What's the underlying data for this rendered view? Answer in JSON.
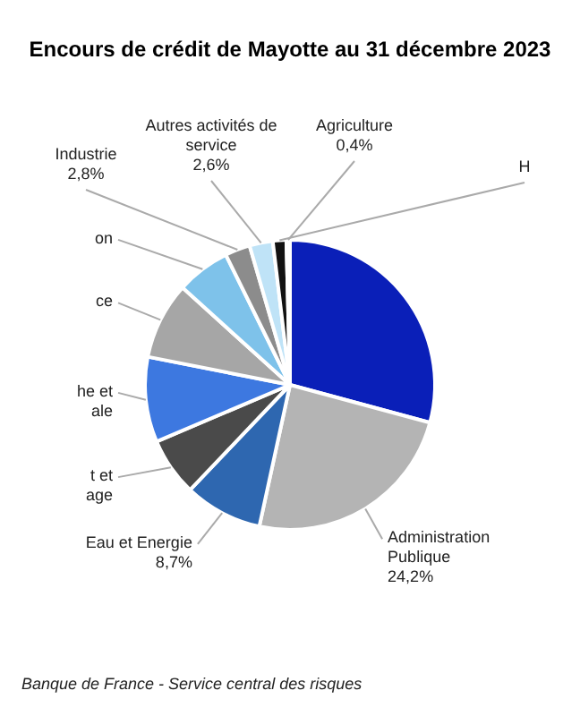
{
  "chart_data": {
    "type": "pie",
    "title": "Encours de crédit de Mayotte au 31 décembre 2023",
    "categories": [
      null,
      "Administration\nPublique",
      "Eau et Energie",
      "t et\nage",
      "he et\nale",
      "ce",
      "on",
      "Industrie",
      "Autres activités de\nservice",
      "H",
      "Agriculture"
    ],
    "values": [
      29.2,
      24.2,
      8.7,
      6.5,
      9.5,
      8.6,
      6,
      2.8,
      2.6,
      1.5,
      0.4
    ],
    "value_labels": [
      null,
      "24,2%",
      "8,7%",
      null,
      null,
      null,
      null,
      "2,8%",
      "2,6%",
      null,
      "0,4%"
    ],
    "colors": [
      "#0a1fb8",
      "#b4b4b4",
      "#2e67b0",
      "#4a4a4a",
      "#3d78e0",
      "#a6a6a6",
      "#7ec2ea",
      "#8c8c8c",
      "#bfe3f7",
      "#111111",
      "#d0d8f0"
    ],
    "annotations": [
      "Banque de France - Service central des risques"
    ]
  }
}
